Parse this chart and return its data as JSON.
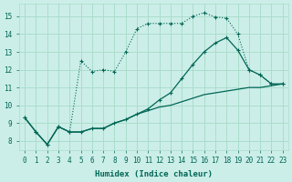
{
  "xlabel": "Humidex (Indice chaleur)",
  "bg_color": "#cceee8",
  "grid_color": "#aaddcc",
  "line_color": "#006655",
  "xlim": [
    -0.5,
    23.5
  ],
  "ylim": [
    7.5,
    15.7
  ],
  "xticks": [
    0,
    1,
    2,
    3,
    4,
    5,
    6,
    7,
    8,
    9,
    10,
    11,
    12,
    13,
    14,
    15,
    16,
    17,
    18,
    19,
    20,
    21,
    22,
    23
  ],
  "yticks": [
    8,
    9,
    10,
    11,
    12,
    13,
    14,
    15
  ],
  "line_dotted_x": [
    0,
    1,
    2,
    3,
    4,
    5,
    6,
    7,
    8,
    9,
    10,
    11,
    12,
    13,
    14,
    15,
    16,
    17,
    18,
    19,
    20,
    21,
    22,
    23
  ],
  "line_dotted_y": [
    9.3,
    8.5,
    7.8,
    8.8,
    8.5,
    12.5,
    11.9,
    12.0,
    11.9,
    13.0,
    14.3,
    14.6,
    14.6,
    14.6,
    14.6,
    15.0,
    15.2,
    14.95,
    14.9,
    14.0,
    12.0,
    11.7,
    11.2,
    11.2
  ],
  "line_solid_marker_x": [
    0,
    1,
    2,
    3,
    4,
    5,
    6,
    7,
    8,
    9,
    10,
    11,
    12,
    13,
    14,
    15,
    16,
    17,
    18,
    19,
    20,
    21,
    22,
    23
  ],
  "line_solid_marker_y": [
    9.3,
    8.5,
    7.8,
    8.8,
    8.5,
    8.5,
    8.7,
    8.7,
    9.0,
    9.2,
    9.5,
    9.8,
    10.3,
    10.7,
    11.5,
    12.3,
    13.0,
    13.5,
    13.8,
    13.1,
    12.0,
    11.7,
    11.2,
    11.2
  ],
  "line_straight_x": [
    0,
    1,
    2,
    3,
    4,
    5,
    6,
    7,
    8,
    9,
    10,
    11,
    12,
    13,
    14,
    15,
    16,
    17,
    18,
    19,
    20,
    21,
    22,
    23
  ],
  "line_straight_y": [
    9.3,
    8.5,
    7.8,
    8.8,
    8.5,
    8.5,
    8.7,
    8.7,
    9.0,
    9.2,
    9.5,
    9.7,
    9.9,
    10.0,
    10.2,
    10.4,
    10.6,
    10.7,
    10.8,
    10.9,
    11.0,
    11.0,
    11.1,
    11.2
  ]
}
